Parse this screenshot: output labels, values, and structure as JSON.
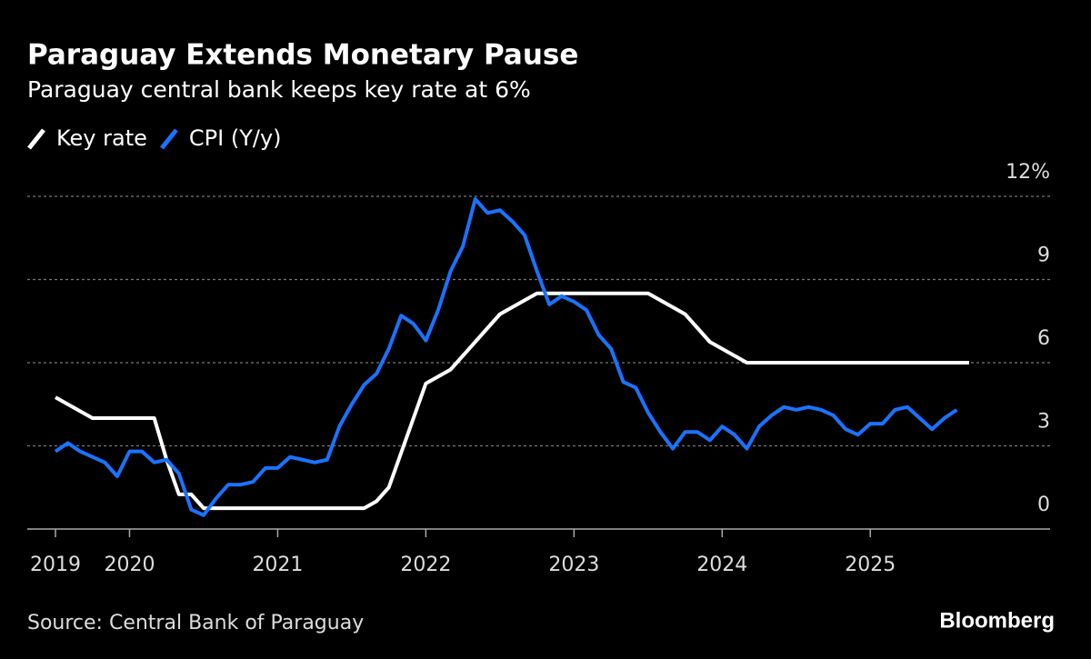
{
  "chart_data": {
    "type": "line",
    "title": "Paraguay Extends Monetary Pause",
    "subtitle": "Paraguay central bank keeps key rate at 6%",
    "source": "Source: Central Bank of Paraguay",
    "brand": "Bloomberg",
    "categories": [
      "2019",
      null,
      null,
      null,
      null,
      null,
      "2020",
      null,
      null,
      null,
      null,
      null,
      null,
      null,
      null,
      null,
      null,
      null,
      "2021",
      null,
      null,
      null,
      null,
      null,
      null,
      null,
      null,
      null,
      null,
      null,
      "2022",
      null,
      null,
      null,
      null,
      null,
      null,
      null,
      null,
      null,
      null,
      null,
      "2023",
      null,
      null,
      null,
      null,
      null,
      null,
      null,
      null,
      null,
      null,
      null,
      "2024",
      null,
      null,
      null,
      null,
      null,
      null,
      null,
      null,
      null,
      null,
      null,
      "2025",
      null,
      null,
      null,
      null,
      null,
      null,
      null,
      null
    ],
    "series": [
      {
        "name": "Key rate",
        "color": "#ffffff",
        "values": [
          4.75,
          4.5,
          4.25,
          4.0,
          4.0,
          4.0,
          4.0,
          4.0,
          4.0,
          2.5,
          1.25,
          1.25,
          0.75,
          0.75,
          0.75,
          0.75,
          0.75,
          0.75,
          0.75,
          0.75,
          0.75,
          0.75,
          0.75,
          0.75,
          0.75,
          0.75,
          1.0,
          1.5,
          2.75,
          4.0,
          5.25,
          5.5,
          5.75,
          6.25,
          6.75,
          7.25,
          7.75,
          8.0,
          8.25,
          8.5,
          8.5,
          8.5,
          8.5,
          8.5,
          8.5,
          8.5,
          8.5,
          8.5,
          8.5,
          8.25,
          8.0,
          7.75,
          7.25,
          6.75,
          6.5,
          6.25,
          6.0,
          6.0,
          6.0,
          6.0,
          6.0,
          6.0,
          6.0,
          6.0,
          6.0,
          6.0,
          6.0,
          6.0,
          6.0,
          6.0,
          6.0,
          6.0,
          6.0,
          6.0,
          6.0
        ]
      },
      {
        "name": "CPI (Y/y)",
        "color": "#1a73ff",
        "values": [
          2.8,
          3.1,
          2.8,
          2.6,
          2.4,
          1.9,
          2.8,
          2.8,
          2.4,
          2.5,
          2.0,
          0.7,
          0.5,
          1.1,
          1.6,
          1.6,
          1.7,
          2.2,
          2.2,
          2.6,
          2.5,
          2.4,
          2.5,
          3.7,
          4.5,
          5.2,
          5.6,
          6.5,
          7.7,
          7.4,
          6.8,
          7.9,
          9.3,
          10.2,
          11.9,
          11.4,
          11.5,
          11.1,
          10.6,
          9.3,
          8.1,
          8.4,
          8.2,
          7.9,
          7.0,
          6.5,
          5.3,
          5.1,
          4.2,
          3.5,
          2.9,
          3.5,
          3.5,
          3.2,
          3.7,
          3.4,
          2.9,
          3.7,
          4.1,
          4.4,
          4.3,
          4.4,
          4.3,
          4.1,
          3.6,
          3.4,
          3.8,
          3.8,
          4.3,
          4.4,
          4.0,
          3.6,
          4.0,
          4.3,
          null
        ]
      }
    ],
    "ylim": [
      0,
      12
    ],
    "yticks": [
      0,
      3,
      6,
      9,
      {
        "value": 12,
        "label": "12%"
      }
    ],
    "grid": true
  }
}
